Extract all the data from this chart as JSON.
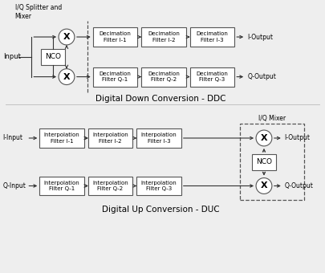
{
  "bg_color": "#eeeeee",
  "box_color": "#ffffff",
  "box_edge": "#555555",
  "line_color": "#333333",
  "dashed_color": "#555555",
  "text_color": "#000000",
  "title_ddc": "Digital Down Conversion - DDC",
  "title_duc": "Digital Up Conversion - DUC",
  "label_iq_splitter": "I/Q Splitter and\nMixer",
  "label_iq_mixer": "I/Q Mixer",
  "label_nco": "NCO",
  "label_input": "Input",
  "label_i_input": "I-Input",
  "label_q_input": "Q-Input",
  "label_i_output": "I-Output",
  "label_q_output": "Q-Output",
  "ddc_filters_i": [
    "Decimation\nFilter I-1",
    "Decimation\nFilter I-2",
    "Decimation\nFilter I-3"
  ],
  "ddc_filters_q": [
    "Decimation\nFilter Q-1",
    "Decimation\nFilter Q-2",
    "Decimation\nFilter Q-3"
  ],
  "duc_filters_i": [
    "Interpolation\nFilter I-1",
    "Interpolation\nFilter I-2",
    "Interpolation\nFilter I-3"
  ],
  "duc_filters_q": [
    "Interpolation\nFilter Q-1",
    "Interpolation\nFilter Q-2",
    "Interpolation\nFilter Q-3"
  ]
}
